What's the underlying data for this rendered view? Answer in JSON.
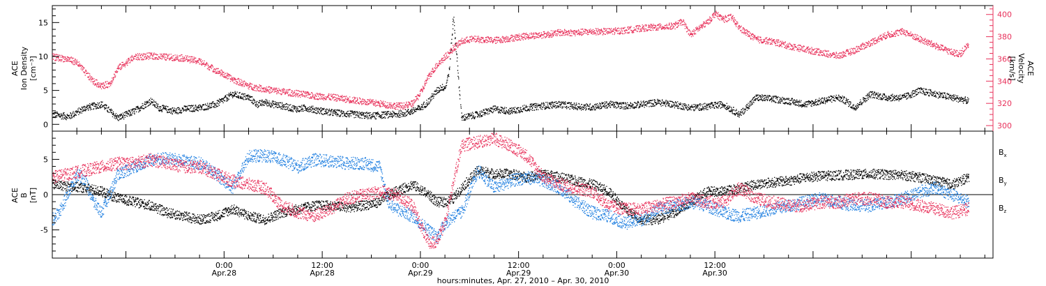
{
  "colors": {
    "black": "#000000",
    "pink": "#e8305a",
    "blue": "#1f7fe0"
  },
  "chart_data": [
    {
      "type": "scatter",
      "panel": "plasma",
      "ylabel_left": [
        "ACE",
        "Ion Density",
        "[cm⁻³]"
      ],
      "ylabel_right": [
        "ACE",
        "Velocity",
        "[km/s]"
      ],
      "ylim_left": [
        -1,
        17.5
      ],
      "yticks_left": [
        0,
        5,
        10,
        15
      ],
      "ylim_right": [
        295,
        408
      ],
      "yticks_right": [
        300,
        320,
        340,
        360,
        380,
        400
      ],
      "xlim_hours": [
        -21,
        94
      ],
      "grid": false,
      "series": [
        {
          "name": "Ion Density",
          "axis": "left",
          "color": "#000000",
          "x": [
            -21,
            -19,
            -17,
            -15,
            -13,
            -11,
            -9,
            -8,
            -6,
            -5,
            -3,
            -1,
            1,
            3,
            4,
            5,
            6,
            7,
            8,
            9,
            10,
            11,
            12,
            13,
            14,
            15,
            16,
            17,
            18,
            19,
            20,
            21,
            22,
            23,
            24,
            25,
            26,
            26.5,
            27,
            27.5,
            28,
            29,
            31,
            33,
            35,
            37,
            39,
            41,
            43,
            45,
            47,
            49,
            51,
            53,
            55,
            57,
            59,
            61,
            63,
            65,
            67,
            69,
            71,
            73,
            75,
            76,
            77,
            79,
            81,
            83,
            85,
            87,
            89,
            91
          ],
          "y": [
            1.5,
            1.2,
            2.5,
            3.0,
            1.0,
            2.0,
            3.5,
            2.5,
            2.0,
            2.3,
            2.5,
            3.0,
            4.5,
            4.0,
            3.0,
            3.3,
            3.0,
            2.8,
            2.5,
            2.3,
            2.5,
            2.2,
            2.0,
            1.8,
            1.7,
            1.6,
            1.5,
            1.4,
            1.3,
            1.4,
            1.5,
            1.5,
            1.7,
            2.0,
            2.5,
            3.5,
            5.0,
            5.5,
            5.5,
            8.0,
            16.0,
            1.0,
            1.5,
            2.3,
            2.0,
            2.5,
            2.8,
            3.0,
            2.7,
            2.6,
            3.0,
            2.8,
            3.0,
            3.3,
            3.0,
            2.5,
            2.7,
            3.0,
            1.5,
            4.0,
            3.8,
            3.5,
            3.0,
            3.5,
            4.0,
            3.5,
            2.5,
            4.5,
            4.0,
            4.0,
            5.0,
            4.5,
            4.0,
            3.5
          ]
        },
        {
          "name": "Velocity",
          "axis": "right",
          "color": "#e8305a",
          "x": [
            -21,
            -19,
            -18,
            -17,
            -16,
            -15,
            -14,
            -13,
            -11,
            -9,
            -7,
            -5,
            -3,
            -1,
            1,
            3,
            5,
            7,
            9,
            11,
            13,
            15,
            17,
            19,
            20,
            21,
            22,
            23,
            24,
            25,
            26,
            27,
            28,
            29,
            30,
            31,
            33,
            35,
            37,
            39,
            41,
            43,
            45,
            47,
            49,
            51,
            53,
            55,
            56,
            57,
            58,
            59,
            60,
            61,
            62,
            63,
            65,
            67,
            69,
            71,
            73,
            75,
            77,
            79,
            81,
            83,
            85,
            87,
            89,
            90,
            91
          ],
          "y": [
            362,
            360,
            357,
            348,
            340,
            336,
            338,
            352,
            362,
            363,
            362,
            361,
            358,
            350,
            342,
            336,
            333,
            331,
            329,
            327,
            326,
            324,
            322,
            320,
            319,
            318,
            318,
            320,
            330,
            345,
            355,
            362,
            370,
            376,
            378,
            378,
            377,
            379,
            381,
            382,
            384,
            384,
            385,
            385,
            386,
            388,
            389,
            390,
            394,
            382,
            388,
            393,
            401,
            396,
            398,
            388,
            378,
            376,
            372,
            369,
            366,
            363,
            368,
            375,
            382,
            385,
            378,
            372,
            366,
            365,
            374
          ]
        }
      ]
    },
    {
      "type": "scatter",
      "panel": "magnetic-field",
      "ylabel_left": [
        "ACE",
        "B",
        "[nT]"
      ],
      "ylim": [
        -9,
        9
      ],
      "yticks": [
        -5,
        0,
        5
      ],
      "xlim_hours": [
        -21,
        94
      ],
      "xticks_hours": [
        0,
        12,
        24,
        36,
        48,
        60
      ],
      "xtick_labels": [
        [
          "0:00",
          "Apr.28"
        ],
        [
          "12:00",
          "Apr.28"
        ],
        [
          "0:00",
          "Apr.29"
        ],
        [
          "12:00",
          "Apr.29"
        ],
        [
          "0:00",
          "Apr.30"
        ],
        [
          "12:00",
          "Apr.30"
        ]
      ],
      "xlabel": "hours:minutes, Apr. 27, 2010 – Apr. 30, 2010",
      "legend_position": "right",
      "series": [
        {
          "name": "Bx",
          "legend_base": "B",
          "legend_sub": "x",
          "color": "#000000",
          "x": [
            -21,
            -19,
            -17,
            -15,
            -13,
            -11,
            -9,
            -7,
            -5,
            -3,
            -1,
            1,
            3,
            5,
            7,
            9,
            11,
            13,
            15,
            17,
            19,
            20,
            21,
            23,
            25,
            26,
            27,
            28,
            29,
            31,
            33,
            35,
            37,
            39,
            41,
            43,
            45,
            47,
            49,
            51,
            53,
            55,
            57,
            59,
            61,
            63,
            65,
            67,
            69,
            71,
            73,
            75,
            77,
            79,
            81,
            83,
            85,
            87,
            89,
            91
          ],
          "y": [
            1.5,
            1.2,
            1.0,
            0.5,
            -0.5,
            -1.0,
            -1.5,
            -2.5,
            -3.0,
            -3.5,
            -3.0,
            -2.0,
            -3.0,
            -3.5,
            -2.5,
            -2.0,
            -1.5,
            -1.5,
            -1.8,
            -1.5,
            -1.0,
            0.0,
            0.5,
            1.5,
            0.0,
            -1.0,
            -1.0,
            -0.5,
            1.0,
            3.5,
            3.0,
            3.0,
            2.5,
            3.0,
            2.5,
            2.0,
            1.5,
            0.5,
            -2.0,
            -3.5,
            -3.5,
            -2.5,
            -1.0,
            0.5,
            0.5,
            1.0,
            1.5,
            1.8,
            2.0,
            2.5,
            2.7,
            2.8,
            2.9,
            3.0,
            2.9,
            2.8,
            2.5,
            2.0,
            1.5,
            2.5
          ]
        },
        {
          "name": "By",
          "legend_base": "B",
          "legend_sub": "y",
          "color": "#1f7fe0",
          "x": [
            -21,
            -20,
            -19,
            -18,
            -17,
            -16,
            -15,
            -13,
            -11,
            -9,
            -7,
            -5,
            -3,
            -1,
            1,
            3,
            5,
            7,
            9,
            11,
            13,
            15,
            17,
            19,
            20,
            21,
            23,
            25,
            26,
            27,
            28,
            29,
            31,
            33,
            35,
            37,
            39,
            41,
            43,
            45,
            47,
            49,
            51,
            53,
            55,
            57,
            59,
            61,
            63,
            65,
            67,
            69,
            71,
            73,
            75,
            77,
            79,
            81,
            83,
            85,
            87,
            89,
            91
          ],
          "y": [
            -3.5,
            -2.0,
            0.5,
            3.0,
            2.0,
            -1.0,
            -2.5,
            3.0,
            4.0,
            5.0,
            5.2,
            4.8,
            4.5,
            3.0,
            1.0,
            5.5,
            5.6,
            5.0,
            4.0,
            5.0,
            4.8,
            4.5,
            4.5,
            4.0,
            -1.0,
            -2.0,
            -3.0,
            -5.0,
            -6.0,
            -4.0,
            -3.0,
            -2.5,
            3.5,
            1.0,
            2.0,
            2.5,
            2.0,
            1.0,
            -1.0,
            -2.5,
            -3.0,
            -4.0,
            -3.5,
            -2.0,
            -1.5,
            -1.0,
            -1.5,
            -2.5,
            -3.0,
            -2.5,
            -2.0,
            -1.5,
            -1.0,
            -0.5,
            -1.0,
            -1.5,
            -1.5,
            -1.0,
            -0.5,
            0.5,
            1.0,
            0.0,
            -1.0
          ]
        },
        {
          "name": "Bz",
          "legend_base": "B",
          "legend_sub": "z",
          "color": "#e8305a",
          "x": [
            -21,
            -19,
            -17,
            -15,
            -13,
            -11,
            -9,
            -7,
            -5,
            -3,
            -1,
            1,
            3,
            5,
            7,
            9,
            11,
            13,
            15,
            17,
            19,
            21,
            23,
            25,
            26,
            27,
            28,
            29,
            31,
            33,
            35,
            37,
            39,
            41,
            43,
            45,
            47,
            49,
            51,
            53,
            55,
            57,
            59,
            61,
            63,
            65,
            67,
            69,
            71,
            73,
            75,
            77,
            79,
            81,
            83,
            85,
            87,
            89,
            91
          ],
          "y": [
            2.5,
            3.0,
            3.5,
            4.0,
            4.5,
            4.5,
            5.0,
            4.5,
            4.0,
            4.0,
            3.0,
            2.0,
            1.5,
            1.0,
            -1.5,
            -2.5,
            -3.0,
            -2.0,
            -0.5,
            0.0,
            0.5,
            0.0,
            -1.5,
            -7.0,
            -6.5,
            -4.0,
            2.0,
            7.0,
            7.5,
            8.0,
            7.0,
            5.5,
            2.5,
            1.5,
            1.0,
            0.5,
            -1.5,
            -2.0,
            -2.0,
            -1.5,
            -1.0,
            -0.5,
            -1.0,
            -1.0,
            1.0,
            -0.5,
            -1.0,
            -1.5,
            -1.5,
            -1.0,
            -1.0,
            -0.5,
            -0.5,
            -1.0,
            -1.0,
            -1.5,
            -2.0,
            -2.5,
            -2.0
          ]
        }
      ]
    }
  ]
}
